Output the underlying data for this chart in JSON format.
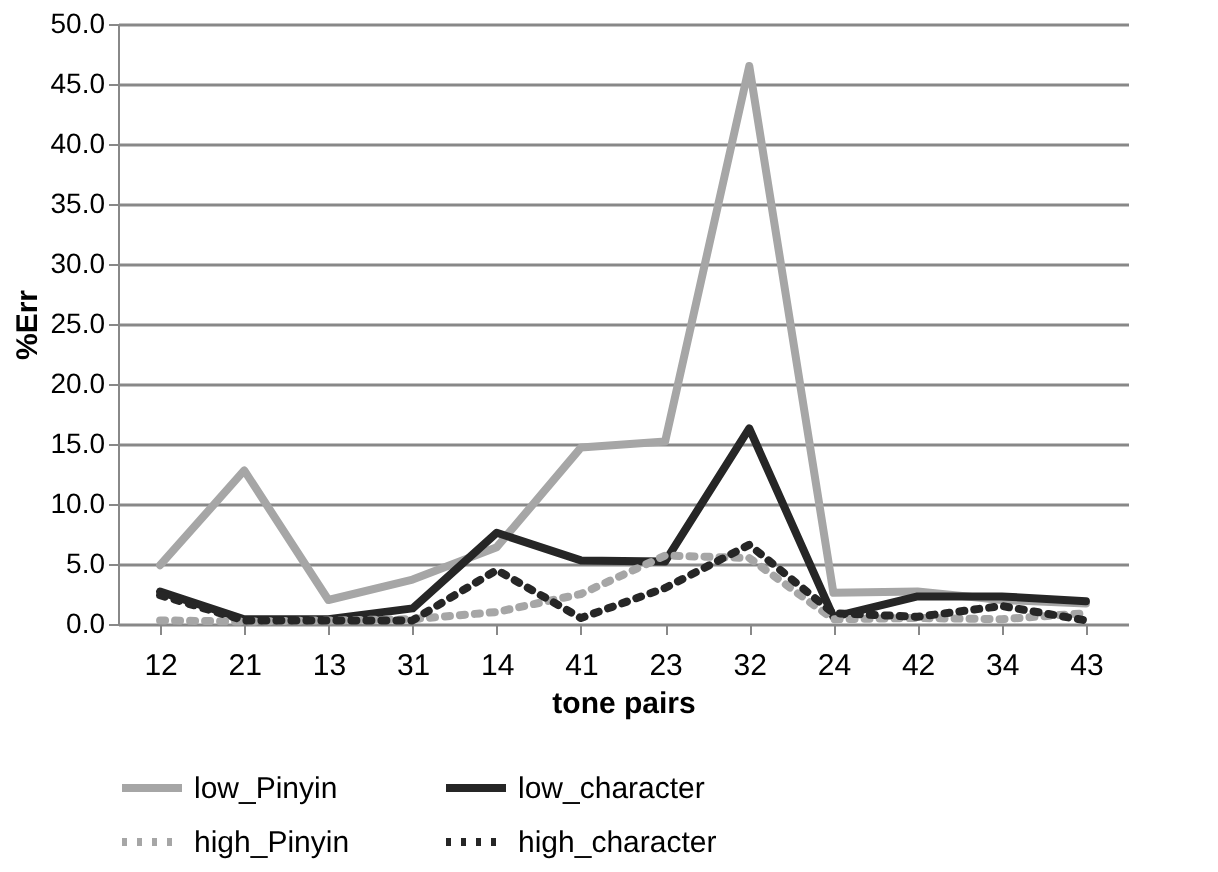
{
  "chart_data": {
    "type": "line",
    "xlabel": "tone pairs",
    "ylabel": "%Err",
    "categories": [
      "12",
      "21",
      "13",
      "31",
      "14",
      "41",
      "23",
      "32",
      "24",
      "42",
      "34",
      "43"
    ],
    "series": [
      {
        "name": "low_Pinyin",
        "color": "#a6a6a6",
        "line_style": "solid",
        "values": [
          4.9,
          12.8,
          2.0,
          3.7,
          6.4,
          14.7,
          15.2,
          46.5,
          2.6,
          2.7,
          2.0,
          1.7
        ]
      },
      {
        "name": "low_character",
        "color": "#262626",
        "line_style": "solid",
        "values": [
          2.7,
          0.4,
          0.4,
          1.3,
          7.6,
          5.3,
          5.2,
          16.3,
          0.6,
          2.3,
          2.3,
          1.9
        ]
      },
      {
        "name": "high_Pinyin",
        "color": "#a6a6a6",
        "line_style": "dotted",
        "values": [
          0.3,
          0.2,
          0.3,
          0.4,
          1.0,
          2.5,
          5.7,
          5.5,
          0.4,
          0.5,
          0.4,
          0.9
        ]
      },
      {
        "name": "high_character",
        "color": "#262626",
        "line_style": "dotted",
        "values": [
          2.4,
          0.3,
          0.3,
          0.3,
          4.5,
          0.5,
          3.0,
          6.6,
          0.9,
          0.6,
          1.5,
          0.3
        ]
      }
    ],
    "ylim": [
      0,
      50
    ],
    "yticks": [
      {
        "value": 0,
        "label": "0.0"
      },
      {
        "value": 5,
        "label": "5.0"
      },
      {
        "value": 10,
        "label": "10.0"
      },
      {
        "value": 15,
        "label": "15.0"
      },
      {
        "value": 20,
        "label": "20.0"
      },
      {
        "value": 25,
        "label": "25.0"
      },
      {
        "value": 30,
        "label": "30.0"
      },
      {
        "value": 35,
        "label": "35.0"
      },
      {
        "value": 40,
        "label": "40.0"
      },
      {
        "value": 45,
        "label": "45.0"
      },
      {
        "value": 50,
        "label": "50.0"
      }
    ],
    "grid": "y",
    "legend": "bottom",
    "marker": "none"
  }
}
